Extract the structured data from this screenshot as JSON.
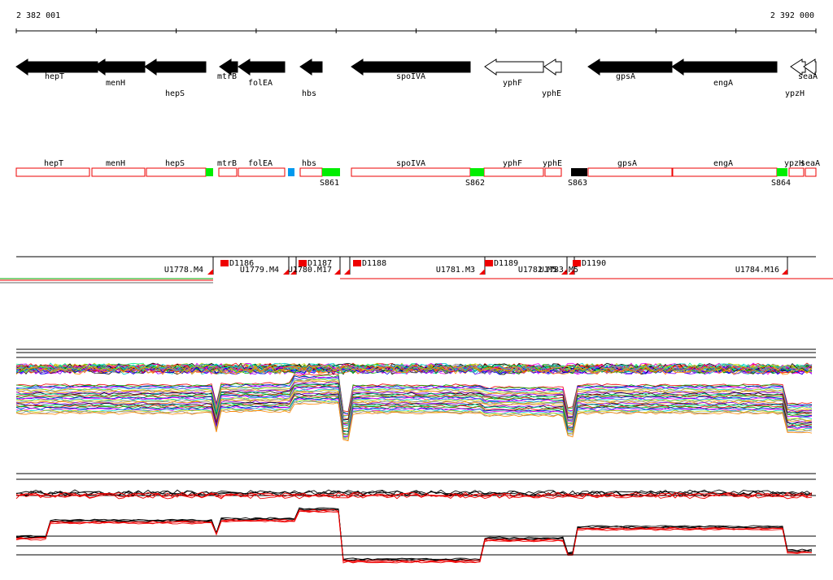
{
  "header": {
    "start": "2 382 001",
    "end": "2 392 000"
  },
  "genes": [
    "hepT",
    "menH",
    "hepS",
    "mtrB",
    "folEA",
    "hbs",
    "spoIVA",
    "yphF",
    "yphE",
    "gpsA",
    "engA",
    "ypzH",
    "seaA"
  ],
  "features": [
    "hepT",
    "menH",
    "hepS",
    "mtrB",
    "folEA",
    "hbs",
    "spoIVA",
    "yphF",
    "yphE",
    "gpsA",
    "engA",
    "ypzH",
    "seaA"
  ],
  "sites": [
    "S861",
    "S862",
    "S863",
    "S864"
  ],
  "segments": [
    "U1778.M4",
    "D1186",
    "U1779.M4",
    "D1187",
    "U1780.M17",
    "D1188",
    "U1781.M3",
    "D1189",
    "U1782.M5",
    "U1783.M5",
    "D1190",
    "U1784.M16"
  ]
}
